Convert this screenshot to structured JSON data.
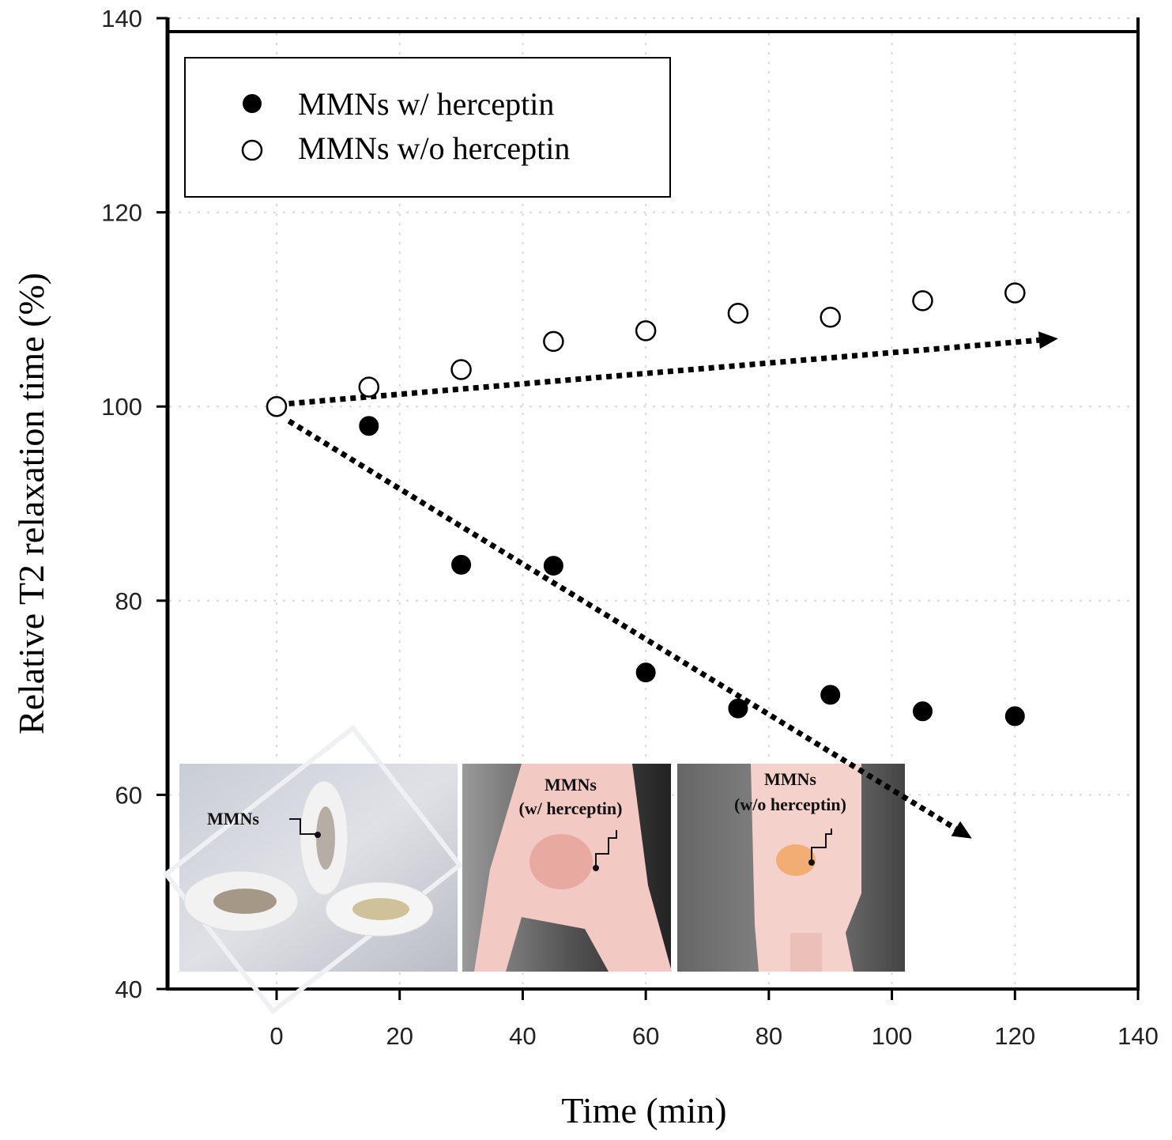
{
  "chart_data": {
    "type": "scatter",
    "title": "",
    "xlabel": "Time (min)",
    "ylabel": "Relative T2 relaxation time (%)",
    "xlim": [
      -18,
      140
    ],
    "ylim": [
      40,
      140
    ],
    "xticks": [
      0,
      20,
      40,
      60,
      80,
      100,
      120,
      140
    ],
    "yticks": [
      40,
      60,
      80,
      100,
      120,
      140
    ],
    "grid": true,
    "legend_position": "top-left",
    "series": [
      {
        "name": "MMNs w/ herceptin",
        "marker": "filled-circle",
        "color": "#000000",
        "x": [
          15,
          30,
          45,
          60,
          75,
          90,
          105,
          120
        ],
        "y": [
          98.0,
          83.7,
          83.6,
          72.6,
          68.9,
          70.3,
          68.6,
          68.1
        ]
      },
      {
        "name": "MMNs w/o herceptin",
        "marker": "open-circle",
        "color": "#000000",
        "x": [
          0,
          15,
          30,
          45,
          60,
          75,
          90,
          105,
          120
        ],
        "y": [
          100.0,
          102.0,
          103.8,
          106.7,
          107.8,
          109.6,
          109.2,
          110.9,
          111.7
        ]
      }
    ],
    "trend_arrows": [
      {
        "name": "upward-trend",
        "from": [
          2,
          100.3
        ],
        "to": [
          127,
          107.0
        ]
      },
      {
        "name": "downward-trend",
        "from": [
          2,
          98.5
        ],
        "to": [
          113,
          55.5
        ]
      }
    ],
    "inset_labels": [
      "MMNs",
      "MMNs\n(w/ herceptin)",
      "MMNs\n(w/o herceptin)"
    ]
  }
}
